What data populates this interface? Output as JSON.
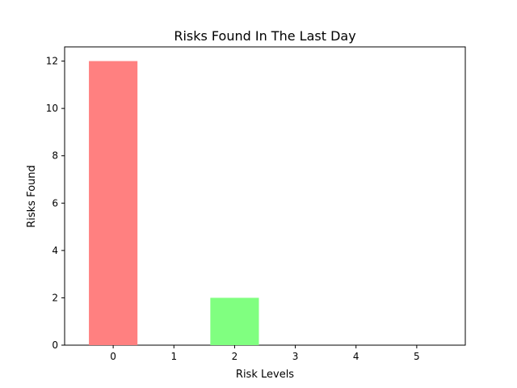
{
  "chart_data": {
    "type": "bar",
    "title": "Risks Found In The Last Day",
    "xlabel": "Risk Levels",
    "ylabel": "Risks Found",
    "categories": [
      "0",
      "1",
      "2",
      "3",
      "4",
      "5"
    ],
    "values": [
      12,
      0,
      2,
      0,
      0,
      0
    ],
    "colors": [
      "#ff8080",
      "#ff8080",
      "#80ff80",
      "#80ff80",
      "#80ff80",
      "#80ff80"
    ],
    "yticks": [
      "0",
      "2",
      "4",
      "6",
      "8",
      "10",
      "12"
    ],
    "ylim": [
      0,
      12.6
    ],
    "xlim": [
      -0.8,
      5.8
    ],
    "bar_width": 0.8,
    "grid": false,
    "legend": "none"
  }
}
